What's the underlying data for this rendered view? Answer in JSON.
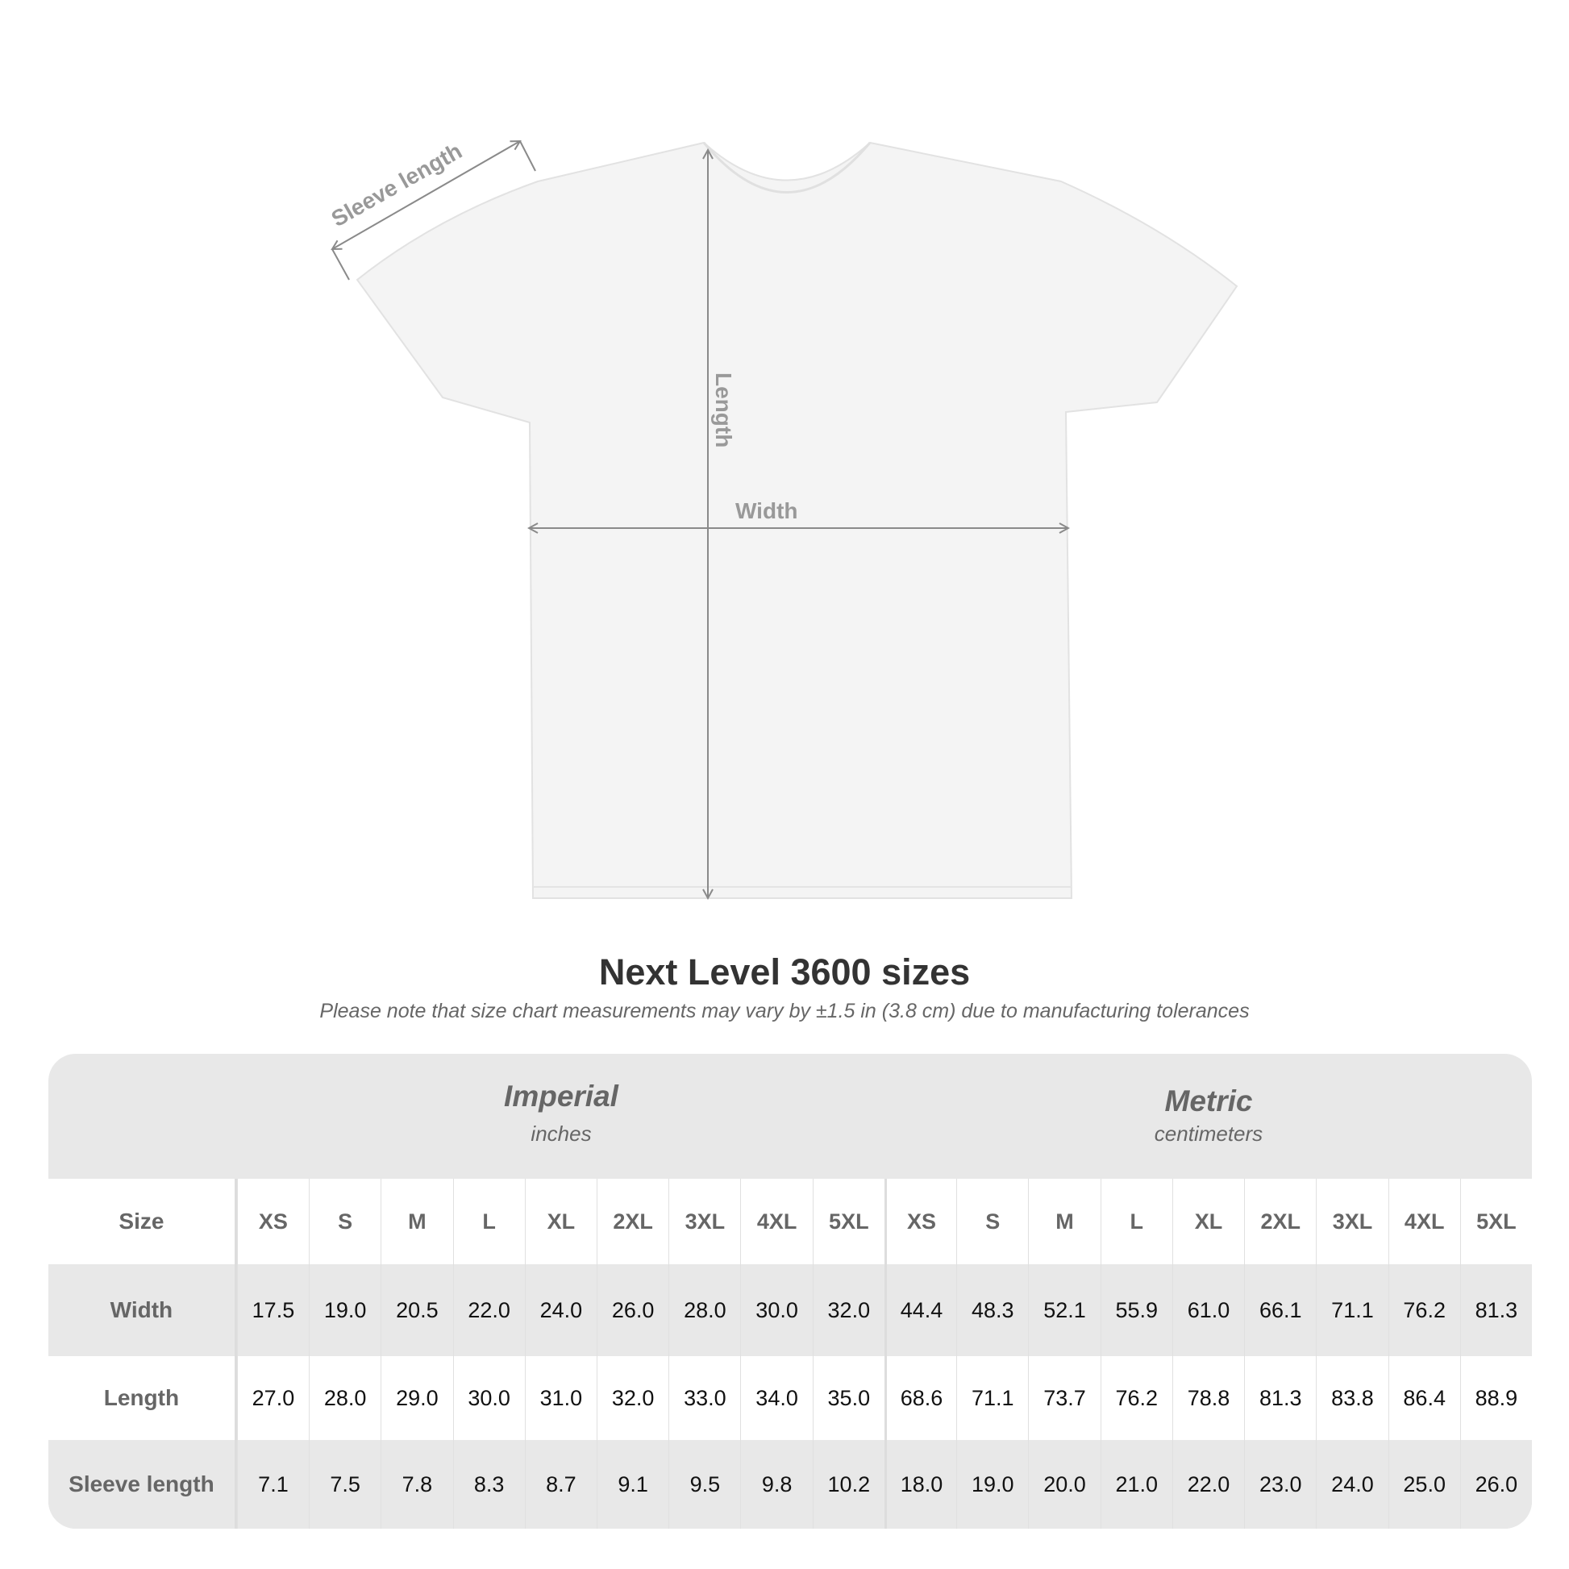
{
  "diagram": {
    "labels": {
      "sleeve": "Sleeve length",
      "length": "Length",
      "width": "Width"
    },
    "line_color": "#8a8a8a"
  },
  "title": "Next Level 3600 sizes",
  "note": "Please note that size chart measurements may vary by ±1.5 in (3.8 cm) due to manufacturing tolerances",
  "table": {
    "imperial": {
      "title": "Imperial",
      "unit": "inches"
    },
    "metric": {
      "title": "Metric",
      "unit": "centimeters"
    },
    "rows": [
      {
        "label": "Size",
        "imperial": [
          "XS",
          "S",
          "M",
          "L",
          "XL",
          "2XL",
          "3XL",
          "4XL",
          "5XL"
        ],
        "metric": [
          "XS",
          "S",
          "M",
          "L",
          "XL",
          "2XL",
          "3XL",
          "4XL",
          "5XL"
        ]
      },
      {
        "label": "Width",
        "imperial": [
          "17.5",
          "19.0",
          "20.5",
          "22.0",
          "24.0",
          "26.0",
          "28.0",
          "30.0",
          "32.0"
        ],
        "metric": [
          "44.4",
          "48.3",
          "52.1",
          "55.9",
          "61.0",
          "66.1",
          "71.1",
          "76.2",
          "81.3"
        ]
      },
      {
        "label": "Length",
        "imperial": [
          "27.0",
          "28.0",
          "29.0",
          "30.0",
          "31.0",
          "32.0",
          "33.0",
          "34.0",
          "35.0"
        ],
        "metric": [
          "68.6",
          "71.1",
          "73.7",
          "76.2",
          "78.8",
          "81.3",
          "83.8",
          "86.4",
          "88.9"
        ]
      },
      {
        "label": "Sleeve length",
        "imperial": [
          "7.1",
          "7.5",
          "7.8",
          "8.3",
          "8.7",
          "9.1",
          "9.5",
          "9.8",
          "10.2"
        ],
        "metric": [
          "18.0",
          "19.0",
          "20.0",
          "21.0",
          "22.0",
          "23.0",
          "24.0",
          "25.0",
          "26.0"
        ]
      }
    ]
  }
}
